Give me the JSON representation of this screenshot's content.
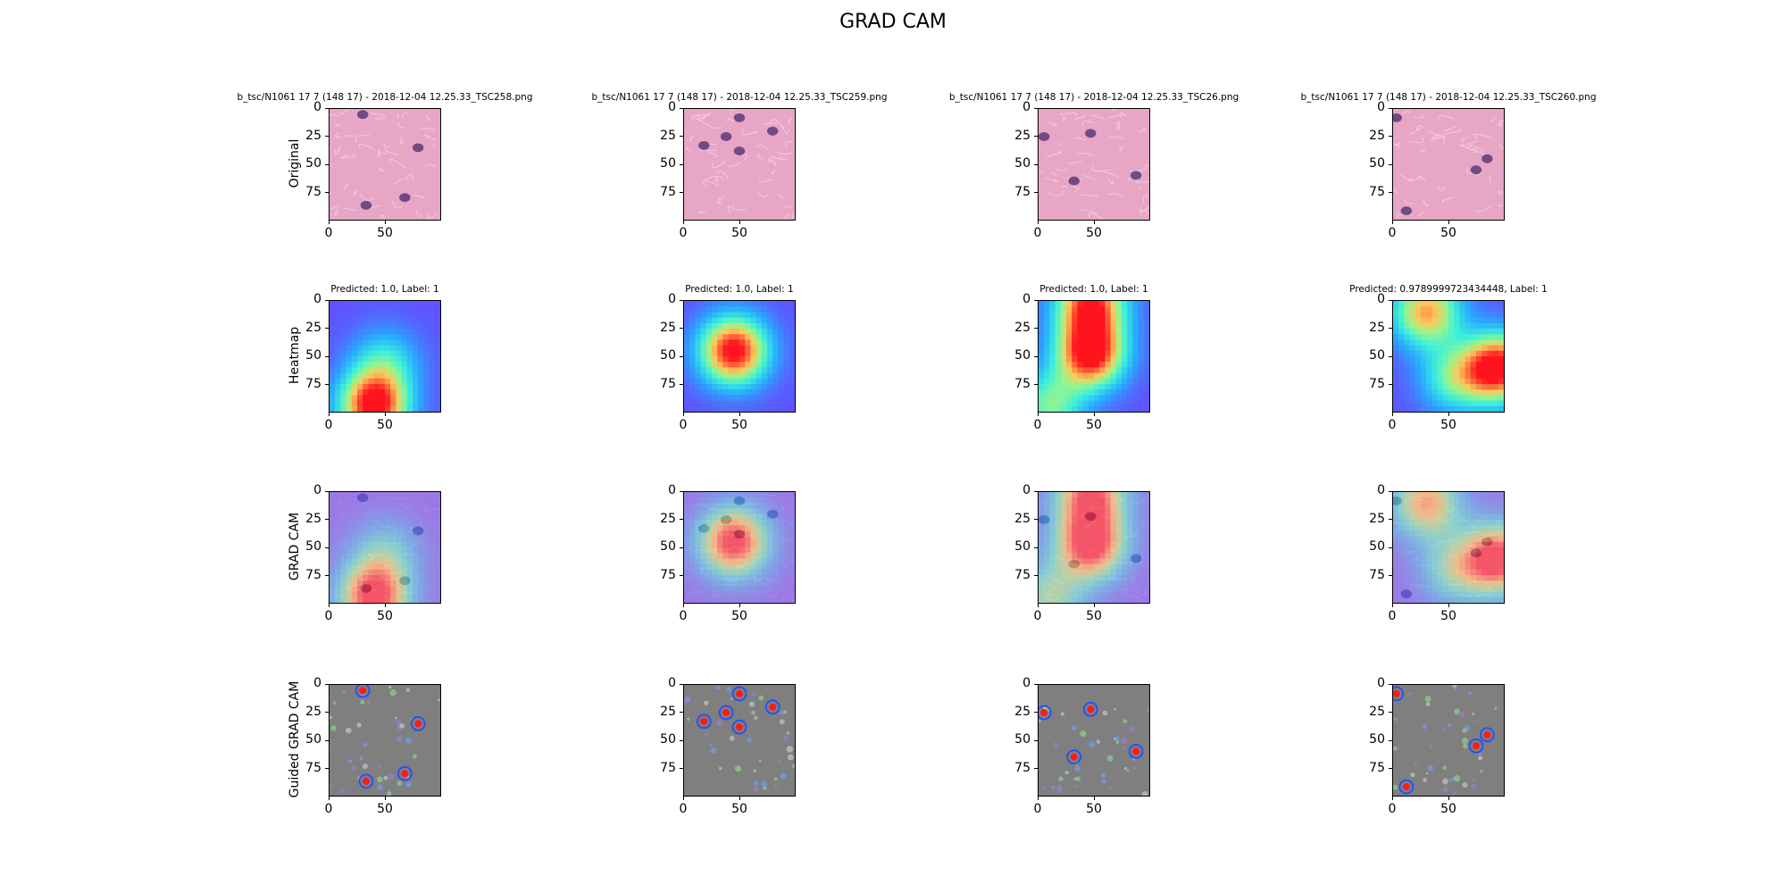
{
  "figure_title": "GRAD CAM",
  "row_labels": [
    "Original",
    "Heatmap",
    "GRAD CAM",
    "Guided GRAD CAM"
  ],
  "column_titles": [
    "b_tsc/N1061 17 7 (148 17) - 2018-12-04 12.25.33_TSC258.png",
    "b_tsc/N1061 17 7 (148 17) - 2018-12-04 12.25.33_TSC259.png",
    "b_tsc/N1061 17 7 (148 17) - 2018-12-04 12.25.33_TSC26.png",
    "b_tsc/N1061 17 7 (148 17) - 2018-12-04 12.25.33_TSC260.png"
  ],
  "prediction_titles": [
    "Predicted: 1.0, Label: 1",
    "Predicted: 1.0, Label: 1",
    "Predicted: 1.0, Label: 1",
    "Predicted: 0.9789999723434448, Label: 1"
  ],
  "y_tick_labels_first_col": [
    "0",
    "25",
    "50",
    "75"
  ],
  "x_tick_labels": [
    "0",
    "50"
  ],
  "colors": {
    "tissue_pink": "#e8a6c6",
    "nucleus_purple": "#5b3a78",
    "guided_gray": "#7f7f7f"
  },
  "chart_data": {
    "type": "heatmap",
    "title": "GRAD CAM",
    "grid": "4 rows x 4 columns of image panels",
    "xlim": [
      0,
      100
    ],
    "ylim": [
      100,
      0
    ],
    "x_ticks": [
      0,
      50
    ],
    "y_ticks": [
      0,
      25,
      50,
      75
    ],
    "rows": [
      "Original",
      "Heatmap",
      "GRAD CAM",
      "Guided GRAD CAM"
    ],
    "columns": [
      {
        "title": "b_tsc/N1061 17 7 (148 17) - 2018-12-04 12.25.33_TSC258.png",
        "predicted": 1.0,
        "label": 1,
        "heat_peaks": [
          {
            "x": 40,
            "y": 95,
            "w": 1.0
          },
          {
            "x": 50,
            "y": 55,
            "w": 0.35
          }
        ],
        "nuclei": [
          {
            "x": 33,
            "y": 87
          },
          {
            "x": 68,
            "y": 80
          },
          {
            "x": 30,
            "y": 5
          },
          {
            "x": 80,
            "y": 35
          }
        ]
      },
      {
        "title": "b_tsc/N1061 17 7 (148 17) - 2018-12-04 12.25.33_TSC259.png",
        "predicted": 1.0,
        "label": 1,
        "heat_peaks": [
          {
            "x": 45,
            "y": 45,
            "w": 1.0
          }
        ],
        "nuclei": [
          {
            "x": 18,
            "y": 33
          },
          {
            "x": 38,
            "y": 25
          },
          {
            "x": 50,
            "y": 38
          },
          {
            "x": 50,
            "y": 8
          },
          {
            "x": 80,
            "y": 20
          }
        ]
      },
      {
        "title": "b_tsc/N1061 17 7 (148 17) - 2018-12-04 12.25.33_TSC26.png",
        "predicted": 1.0,
        "label": 1,
        "heat_peaks": [
          {
            "x": 47,
            "y": 48,
            "w": 1.0
          },
          {
            "x": 47,
            "y": 3,
            "w": 0.9
          },
          {
            "x": 10,
            "y": 95,
            "w": 0.5
          }
        ],
        "nuclei": [
          {
            "x": 47,
            "y": 22
          },
          {
            "x": 32,
            "y": 65
          },
          {
            "x": 88,
            "y": 60
          },
          {
            "x": 5,
            "y": 25
          }
        ]
      },
      {
        "title": "b_tsc/N1061 17 7 (148 17) - 2018-12-04 12.25.33_TSC260.png",
        "predicted": 0.9789999723434448,
        "label": 1,
        "heat_peaks": [
          {
            "x": 95,
            "y": 60,
            "w": 1.0
          },
          {
            "x": 30,
            "y": 10,
            "w": 0.75
          },
          {
            "x": 55,
            "y": 70,
            "w": 0.45
          }
        ],
        "nuclei": [
          {
            "x": 75,
            "y": 55
          },
          {
            "x": 85,
            "y": 45
          },
          {
            "x": 12,
            "y": 92
          },
          {
            "x": 3,
            "y": 8
          }
        ]
      }
    ]
  }
}
